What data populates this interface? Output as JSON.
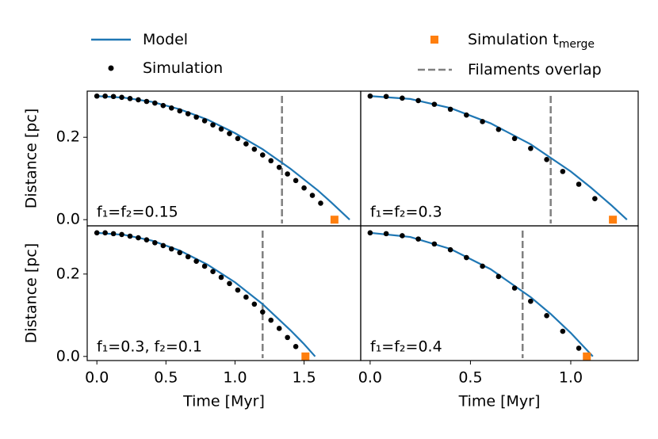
{
  "legend": [
    {
      "name": "Model",
      "color": "#1f77b4",
      "kind": "line"
    },
    {
      "name": "Simulation",
      "color": "#000000",
      "kind": "dot"
    },
    {
      "name": "Simulation t",
      "name_sub": "merge",
      "color": "#ff7f0e",
      "kind": "square"
    },
    {
      "name": "Filaments overlap",
      "color": "#808080",
      "kind": "dash"
    }
  ],
  "chart_data": [
    {
      "type": "line",
      "annotation": "f₁=f₂=0.15",
      "y_label": "Distance [pc]",
      "xlim": [
        -0.07,
        1.91
      ],
      "ylim": [
        -0.015,
        0.312
      ],
      "yticks": [
        {
          "value": 0,
          "label": "0.0"
        },
        0.2
      ],
      "model": {
        "x": [
          0,
          0.2,
          0.4,
          0.6,
          0.8,
          1.0,
          1.2,
          1.4,
          1.6,
          1.7,
          1.83
        ],
        "values": [
          0.3,
          0.296,
          0.286,
          0.268,
          0.243,
          0.21,
          0.171,
          0.124,
          0.071,
          0.041,
          0
        ]
      },
      "simulation": {
        "x": [
          0,
          0.06,
          0.12,
          0.18,
          0.24,
          0.3,
          0.36,
          0.42,
          0.48,
          0.54,
          0.6,
          0.66,
          0.72,
          0.78,
          0.84,
          0.9,
          0.96,
          1.02,
          1.08,
          1.14,
          1.2,
          1.26,
          1.32,
          1.38,
          1.44,
          1.5,
          1.56,
          1.62
        ],
        "values": [
          0.3,
          0.3,
          0.299,
          0.297,
          0.294,
          0.291,
          0.287,
          0.283,
          0.277,
          0.271,
          0.264,
          0.257,
          0.249,
          0.24,
          0.23,
          0.22,
          0.209,
          0.197,
          0.184,
          0.171,
          0.157,
          0.143,
          0.127,
          0.111,
          0.095,
          0.077,
          0.059,
          0.04
        ]
      },
      "merge": {
        "x": 1.72,
        "y": 0
      },
      "overlap": 1.34
    },
    {
      "type": "line",
      "annotation": "f₁=f₂=0.3",
      "xlim": [
        -0.047,
        1.336
      ],
      "ylim": [
        -0.015,
        0.312
      ],
      "model": {
        "x": [
          0,
          0.2,
          0.4,
          0.6,
          0.8,
          1.0,
          1.1,
          1.2,
          1.28
        ],
        "values": [
          0.3,
          0.293,
          0.271,
          0.234,
          0.183,
          0.117,
          0.078,
          0.036,
          0
        ]
      },
      "simulation": {
        "x": [
          0,
          0.08,
          0.16,
          0.24,
          0.32,
          0.4,
          0.48,
          0.56,
          0.64,
          0.72,
          0.8,
          0.88,
          0.96,
          1.04,
          1.12
        ],
        "values": [
          0.3,
          0.299,
          0.295,
          0.289,
          0.28,
          0.268,
          0.254,
          0.238,
          0.219,
          0.197,
          0.173,
          0.146,
          0.117,
          0.086,
          0.051
        ]
      },
      "merge": {
        "x": 1.21,
        "y": 0
      },
      "overlap": 0.9
    },
    {
      "type": "line",
      "annotation": "f₁=0.3, f₂=0.1",
      "y_label": "Distance [pc]",
      "x_label": "Time [Myr]",
      "xlim": [
        -0.07,
        1.91
      ],
      "ylim": [
        -0.01,
        0.317
      ],
      "xticks": [
        {
          "value": 0,
          "label": "0.0"
        },
        0.5,
        {
          "value": 1,
          "label": "1.0"
        },
        1.5
      ],
      "yticks": [
        {
          "value": 0,
          "label": "0.0"
        },
        0.2
      ],
      "model": {
        "x": [
          0,
          0.2,
          0.4,
          0.6,
          0.8,
          1.0,
          1.2,
          1.4,
          1.5,
          1.58
        ],
        "values": [
          0.3,
          0.295,
          0.281,
          0.257,
          0.223,
          0.18,
          0.127,
          0.064,
          0.03,
          0
        ]
      },
      "simulation": {
        "x": [
          0,
          0.06,
          0.12,
          0.18,
          0.24,
          0.3,
          0.36,
          0.42,
          0.48,
          0.54,
          0.6,
          0.66,
          0.72,
          0.78,
          0.84,
          0.9,
          0.96,
          1.02,
          1.08,
          1.14,
          1.2,
          1.26,
          1.32,
          1.38,
          1.44
        ],
        "values": [
          0.3,
          0.3,
          0.298,
          0.296,
          0.292,
          0.288,
          0.283,
          0.276,
          0.269,
          0.261,
          0.252,
          0.242,
          0.231,
          0.219,
          0.206,
          0.192,
          0.177,
          0.161,
          0.144,
          0.127,
          0.108,
          0.088,
          0.068,
          0.046,
          0.024
        ]
      },
      "merge": {
        "x": 1.51,
        "y": 0
      },
      "overlap": 1.2
    },
    {
      "type": "line",
      "annotation": "f₁=f₂=0.4",
      "x_label": "Time [Myr]",
      "xlim": [
        -0.047,
        1.336
      ],
      "ylim": [
        -0.01,
        0.317
      ],
      "xticks": [
        {
          "value": 0,
          "label": "0.0"
        },
        0.5,
        {
          "value": 1,
          "label": "1.0"
        }
      ],
      "model": {
        "x": [
          0,
          0.2,
          0.4,
          0.6,
          0.8,
          0.9,
          1.0,
          1.11
        ],
        "values": [
          0.3,
          0.29,
          0.261,
          0.212,
          0.144,
          0.103,
          0.057,
          0
        ]
      },
      "simulation": {
        "x": [
          0,
          0.08,
          0.16,
          0.24,
          0.32,
          0.4,
          0.48,
          0.56,
          0.64,
          0.72,
          0.8,
          0.88,
          0.96,
          1.04
        ],
        "values": [
          0.3,
          0.298,
          0.293,
          0.285,
          0.273,
          0.259,
          0.24,
          0.219,
          0.194,
          0.166,
          0.134,
          0.099,
          0.061,
          0.02
        ]
      },
      "merge": {
        "x": 1.08,
        "y": 0
      },
      "overlap": 0.76
    }
  ]
}
